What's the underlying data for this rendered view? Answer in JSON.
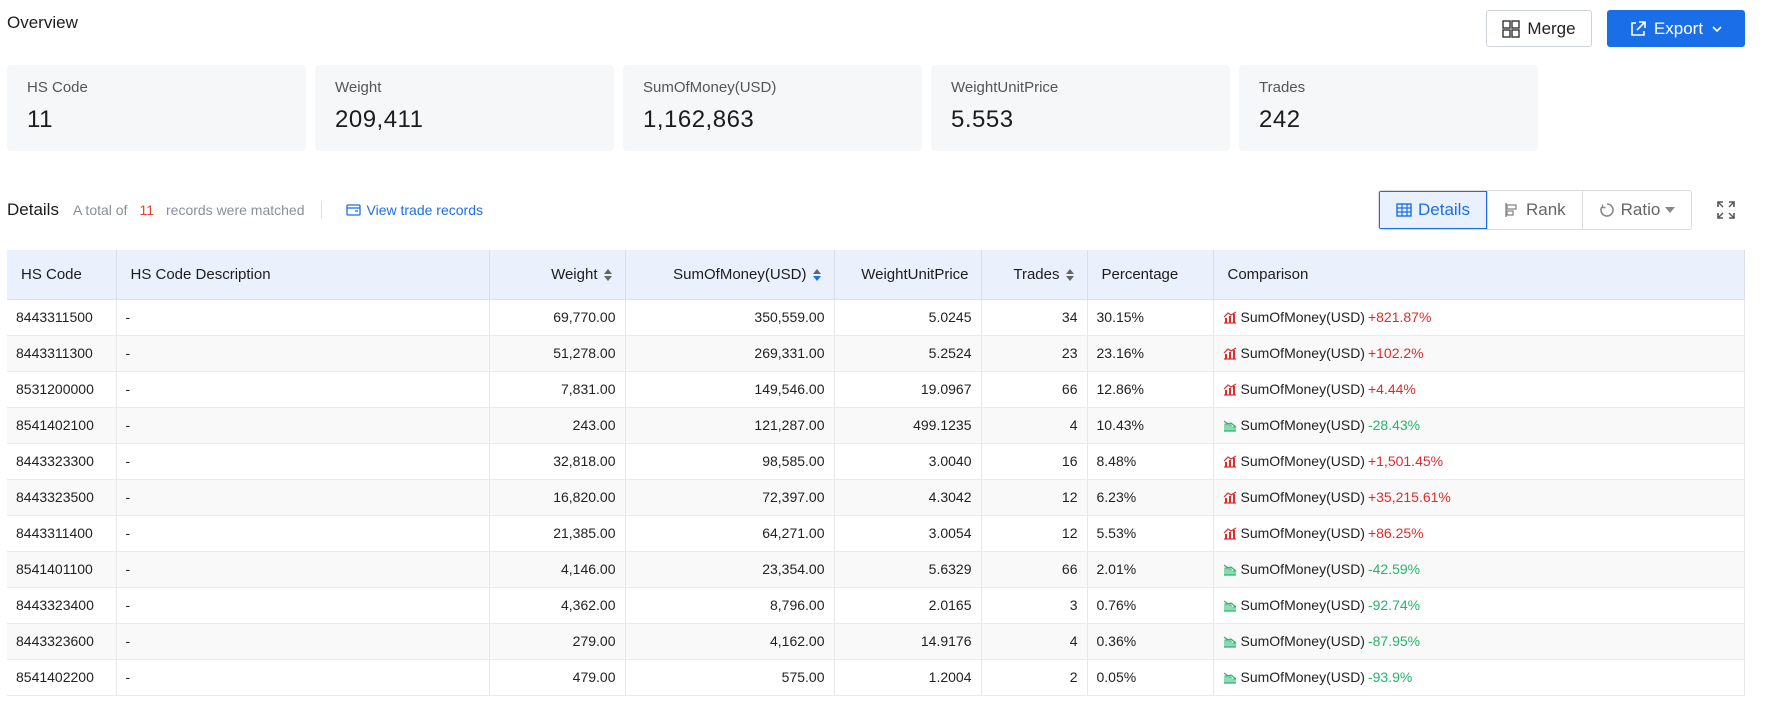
{
  "overview": {
    "title": "Overview",
    "merge_label": "Merge",
    "export_label": "Export"
  },
  "cards": [
    {
      "label": "HS Code",
      "value": "11"
    },
    {
      "label": "Weight",
      "value": "209,411"
    },
    {
      "label": "SumOfMoney(USD)",
      "value": "1,162,863"
    },
    {
      "label": "WeightUnitPrice",
      "value": "5.553"
    },
    {
      "label": "Trades",
      "value": "242"
    }
  ],
  "details": {
    "title": "Details",
    "matched_prefix": "A total of",
    "matched_count": "11",
    "matched_suffix": "records were matched",
    "view_link": "View trade records",
    "view_options": [
      "Details",
      "Rank",
      "Ratio"
    ],
    "active_view": "Details"
  },
  "table": {
    "columns": [
      "HS Code",
      "HS Code Description",
      "Weight",
      "SumOfMoney(USD)",
      "WeightUnitPrice",
      "Trades",
      "Percentage",
      "Comparison"
    ],
    "rows": [
      {
        "hs": "8443311500",
        "desc": "-",
        "weight": "69,770.00",
        "sum": "350,559.00",
        "wup": "5.0245",
        "trades": "34",
        "pct": "30.15%",
        "cmp_label": "SumOfMoney(USD)",
        "cmp_value": "+821.87%",
        "dir": "up"
      },
      {
        "hs": "8443311300",
        "desc": "-",
        "weight": "51,278.00",
        "sum": "269,331.00",
        "wup": "5.2524",
        "trades": "23",
        "pct": "23.16%",
        "cmp_label": "SumOfMoney(USD)",
        "cmp_value": "+102.2%",
        "dir": "up"
      },
      {
        "hs": "8531200000",
        "desc": "-",
        "weight": "7,831.00",
        "sum": "149,546.00",
        "wup": "19.0967",
        "trades": "66",
        "pct": "12.86%",
        "cmp_label": "SumOfMoney(USD)",
        "cmp_value": "+4.44%",
        "dir": "up"
      },
      {
        "hs": "8541402100",
        "desc": "-",
        "weight": "243.00",
        "sum": "121,287.00",
        "wup": "499.1235",
        "trades": "4",
        "pct": "10.43%",
        "cmp_label": "SumOfMoney(USD)",
        "cmp_value": "-28.43%",
        "dir": "down"
      },
      {
        "hs": "8443323300",
        "desc": "-",
        "weight": "32,818.00",
        "sum": "98,585.00",
        "wup": "3.0040",
        "trades": "16",
        "pct": "8.48%",
        "cmp_label": "SumOfMoney(USD)",
        "cmp_value": "+1,501.45%",
        "dir": "up"
      },
      {
        "hs": "8443323500",
        "desc": "-",
        "weight": "16,820.00",
        "sum": "72,397.00",
        "wup": "4.3042",
        "trades": "12",
        "pct": "6.23%",
        "cmp_label": "SumOfMoney(USD)",
        "cmp_value": "+35,215.61%",
        "dir": "up"
      },
      {
        "hs": "8443311400",
        "desc": "-",
        "weight": "21,385.00",
        "sum": "64,271.00",
        "wup": "3.0054",
        "trades": "12",
        "pct": "5.53%",
        "cmp_label": "SumOfMoney(USD)",
        "cmp_value": "+86.25%",
        "dir": "up"
      },
      {
        "hs": "8541401100",
        "desc": "-",
        "weight": "4,146.00",
        "sum": "23,354.00",
        "wup": "5.6329",
        "trades": "66",
        "pct": "2.01%",
        "cmp_label": "SumOfMoney(USD)",
        "cmp_value": "-42.59%",
        "dir": "down"
      },
      {
        "hs": "8443323400",
        "desc": "-",
        "weight": "4,362.00",
        "sum": "8,796.00",
        "wup": "2.0165",
        "trades": "3",
        "pct": "0.76%",
        "cmp_label": "SumOfMoney(USD)",
        "cmp_value": "-92.74%",
        "dir": "down"
      },
      {
        "hs": "8443323600",
        "desc": "-",
        "weight": "279.00",
        "sum": "4,162.00",
        "wup": "14.9176",
        "trades": "4",
        "pct": "0.36%",
        "cmp_label": "SumOfMoney(USD)",
        "cmp_value": "-87.95%",
        "dir": "down"
      },
      {
        "hs": "8541402200",
        "desc": "-",
        "weight": "479.00",
        "sum": "575.00",
        "wup": "1.2004",
        "trades": "2",
        "pct": "0.05%",
        "cmp_label": "SumOfMoney(USD)",
        "cmp_value": "-93.9%",
        "dir": "down"
      }
    ]
  },
  "colors": {
    "accent": "#1a6fe8",
    "positive": "#e02b2b",
    "negative": "#25b46b",
    "header_bg": "#eaf1fd"
  }
}
